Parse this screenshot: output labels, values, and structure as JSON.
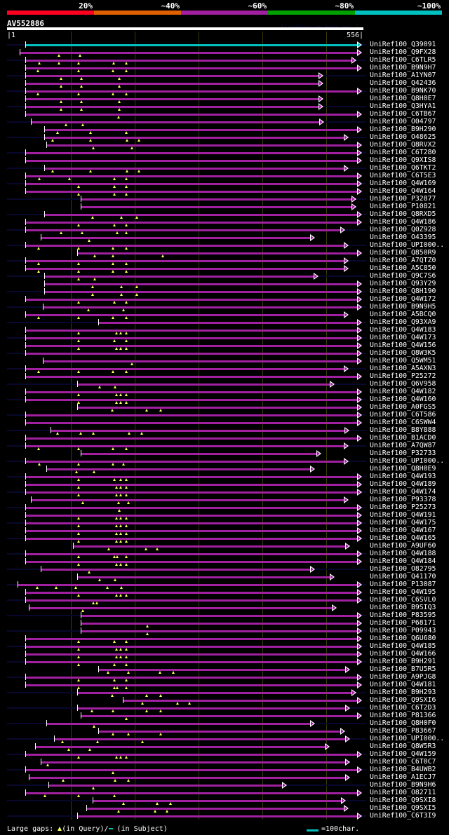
{
  "legend": {
    "labels": [
      "20%",
      "~40%",
      "~60%",
      "~80%",
      "~100%"
    ],
    "colors": [
      "#ff0020",
      "#e06000",
      "#a020a0",
      "#00a000",
      "#00c0c0"
    ]
  },
  "header": {
    "query_id": "AV552886",
    "version": "AlignView.pm Beta rel.7",
    "ruler_start": "|1",
    "ruler_end": "556|",
    "query_length": 556
  },
  "footer": {
    "gaps_label": "Large gaps:",
    "in_query": "(in Query)/",
    "in_subject": " (in Subject)",
    "scale_label": "=100char."
  },
  "colors": {
    "hit": "#a020a0",
    "query": "#00c0c0",
    "gap_marker": "#ffff60"
  },
  "rows": [
    {
      "label": "UniRef100_Q39091",
      "start": 14,
      "end": 556,
      "gaps": [],
      "color": "#00c0c0"
    },
    {
      "label": "UniRef100_Q9FX28",
      "start": 4,
      "end": 556,
      "gaps": [
        69,
        103
      ]
    },
    {
      "label": "UniRef100_C6TLR5",
      "start": 14,
      "end": 547,
      "gaps": [
        37,
        69,
        101,
        158,
        178
      ]
    },
    {
      "label": "UniRef100_B9N9H7",
      "start": 14,
      "end": 556,
      "gaps": [
        34,
        101,
        157,
        178
      ]
    },
    {
      "label": "UniRef100_A1YN07",
      "start": 14,
      "end": 493,
      "gaps": [
        72,
        105,
        167
      ]
    },
    {
      "label": "UniRef100_Q42436",
      "start": 14,
      "end": 493,
      "gaps": [
        72,
        105,
        167
      ]
    },
    {
      "label": "UniRef100_B9NK70",
      "start": 14,
      "end": 556,
      "gaps": [
        34,
        101,
        157,
        178
      ]
    },
    {
      "label": "UniRef100_Q8H0E7",
      "start": 14,
      "end": 493,
      "gaps": [
        72,
        105,
        167
      ]
    },
    {
      "label": "UniRef100_Q3HYA1",
      "start": 14,
      "end": 493,
      "gaps": [
        72,
        105,
        167
      ]
    },
    {
      "label": "UniRef100_C6TB67",
      "start": 14,
      "end": 556,
      "gaps": [
        166
      ]
    },
    {
      "label": "UniRef100_O04797",
      "start": 23,
      "end": 494,
      "gaps": [
        80,
        107
      ]
    },
    {
      "label": "UniRef100_B9H290",
      "start": 44,
      "end": 556,
      "gaps": [
        66,
        120,
        178
      ]
    },
    {
      "label": "UniRef100_O48625",
      "start": 44,
      "end": 534,
      "gaps": [
        58,
        120,
        179,
        199
      ]
    },
    {
      "label": "UniRef100_Q8RVX2",
      "start": 48,
      "end": 556,
      "gaps": [
        125,
        187
      ]
    },
    {
      "label": "UniRef100_C6T280",
      "start": 14,
      "end": 556,
      "gaps": []
    },
    {
      "label": "UniRef100_Q9XIS8",
      "start": 14,
      "end": 556,
      "gaps": []
    },
    {
      "label": "UniRef100_Q6TKT2",
      "start": 44,
      "end": 534,
      "gaps": [
        58,
        120,
        179,
        199
      ]
    },
    {
      "label": "UniRef100_C6T5E3",
      "start": 14,
      "end": 556,
      "gaps": [
        37,
        86,
        159,
        178
      ]
    },
    {
      "label": "UniRef100_Q4W169",
      "start": 14,
      "end": 556,
      "gaps": [
        101,
        159,
        178
      ]
    },
    {
      "label": "UniRef100_Q4W164",
      "start": 14,
      "end": 556,
      "gaps": [
        101,
        159,
        178
      ]
    },
    {
      "label": "UniRef100_P32877",
      "start": 104,
      "end": 547,
      "gaps": []
    },
    {
      "label": "UniRef100_P10821",
      "start": 104,
      "end": 547,
      "gaps": []
    },
    {
      "label": "UniRef100_Q8RXD5",
      "start": 44,
      "end": 556,
      "gaps": [
        124,
        170,
        196
      ]
    },
    {
      "label": "UniRef100_Q4W186",
      "start": 14,
      "end": 556,
      "gaps": [
        101,
        159,
        178
      ]
    },
    {
      "label": "UniRef100_Q0Z928",
      "start": 14,
      "end": 529,
      "gaps": [
        72,
        106,
        164,
        178
      ]
    },
    {
      "label": "UniRef100_O43395",
      "start": 39,
      "end": 479,
      "gaps": [
        118
      ]
    },
    {
      "label": "UniRef100_UPI000..",
      "start": 14,
      "end": 534,
      "gaps": [
        35,
        101,
        157,
        178
      ]
    },
    {
      "label": "UniRef100_Q850R9",
      "start": 98,
      "end": 556,
      "gaps": [
        127,
        157,
        238
      ]
    },
    {
      "label": "UniRef100_A7QTZ0",
      "start": 14,
      "end": 534,
      "gaps": [
        35,
        101,
        157,
        178
      ]
    },
    {
      "label": "UniRef100_A5C850",
      "start": 14,
      "end": 534,
      "gaps": [
        35,
        101,
        157,
        178
      ]
    },
    {
      "label": "UniRef100_Q9C7S6",
      "start": 44,
      "end": 485,
      "gaps": [
        101,
        127
      ]
    },
    {
      "label": "UniRef100_Q93Y29",
      "start": 44,
      "end": 556,
      "gaps": [
        124,
        170,
        196
      ]
    },
    {
      "label": "UniRef100_Q8H190",
      "start": 44,
      "end": 556,
      "gaps": [
        124,
        170,
        196
      ]
    },
    {
      "label": "UniRef100_Q4W172",
      "start": 14,
      "end": 556,
      "gaps": [
        101,
        159,
        178
      ]
    },
    {
      "label": "UniRef100_B9N9H5",
      "start": 42,
      "end": 556,
      "gaps": [
        117,
        174
      ]
    },
    {
      "label": "UniRef100_A5BCQ0",
      "start": 14,
      "end": 534,
      "gaps": [
        35,
        101,
        157,
        178
      ]
    },
    {
      "label": "UniRef100_Q93XA9",
      "start": 133,
      "end": 556,
      "gaps": []
    },
    {
      "label": "UniRef100_Q4W183",
      "start": 14,
      "end": 556,
      "gaps": [
        101,
        162,
        169,
        178
      ]
    },
    {
      "label": "UniRef100_Q4W173",
      "start": 14,
      "end": 556,
      "gaps": [
        101,
        159,
        178
      ]
    },
    {
      "label": "UniRef100_Q4W156",
      "start": 14,
      "end": 556,
      "gaps": [
        101,
        162,
        169,
        178
      ]
    },
    {
      "label": "UniRef100_Q8W3K5",
      "start": 14,
      "end": 556,
      "gaps": []
    },
    {
      "label": "UniRef100_Q5WM51",
      "start": 42,
      "end": 556,
      "gaps": [
        187
      ]
    },
    {
      "label": "UniRef100_A5AXN3",
      "start": 14,
      "end": 534,
      "gaps": [
        35,
        101,
        157,
        178
      ]
    },
    {
      "label": "UniRef100_P25272",
      "start": 14,
      "end": 556,
      "gaps": []
    },
    {
      "label": "UniRef100_Q6V958",
      "start": 98,
      "end": 511,
      "gaps": [
        135,
        160
      ]
    },
    {
      "label": "UniRef100_Q4W182",
      "start": 14,
      "end": 556,
      "gaps": [
        101,
        162,
        169,
        178
      ]
    },
    {
      "label": "UniRef100_Q4W160",
      "start": 14,
      "end": 556,
      "gaps": [
        101,
        162,
        169,
        178
      ]
    },
    {
      "label": "UniRef100_A0FGS5",
      "start": 98,
      "end": 556,
      "gaps": [
        156,
        212,
        234
      ]
    },
    {
      "label": "UniRef100_C6T586",
      "start": 14,
      "end": 556,
      "gaps": []
    },
    {
      "label": "UniRef100_C6SWW4",
      "start": 14,
      "end": 556,
      "gaps": []
    },
    {
      "label": "UniRef100_B8Y888",
      "start": 55,
      "end": 535,
      "gaps": [
        66,
        104,
        125,
        183,
        203
      ]
    },
    {
      "label": "UniRef100_B1ACD0",
      "start": 14,
      "end": 556,
      "gaps": []
    },
    {
      "label": "UniRef100_A7QW87",
      "start": 14,
      "end": 534,
      "gaps": [
        35,
        101,
        157,
        178
      ]
    },
    {
      "label": "UniRef100_P32733",
      "start": 104,
      "end": 490,
      "gaps": []
    },
    {
      "label": "UniRef100_UPI000..",
      "start": 14,
      "end": 534,
      "gaps": [
        37,
        101,
        157,
        174
      ]
    },
    {
      "label": "UniRef100_Q8H0E9",
      "start": 48,
      "end": 479,
      "gaps": [
        97,
        126
      ]
    },
    {
      "label": "UniRef100_Q4W193",
      "start": 14,
      "end": 556,
      "gaps": [
        101,
        159,
        169,
        178
      ]
    },
    {
      "label": "UniRef100_Q4W189",
      "start": 14,
      "end": 556,
      "gaps": [
        101,
        162,
        169,
        178
      ]
    },
    {
      "label": "UniRef100_Q4W174",
      "start": 14,
      "end": 556,
      "gaps": [
        101,
        162,
        169,
        178
      ]
    },
    {
      "label": "UniRef100_P93378",
      "start": 23,
      "end": 534,
      "gaps": [
        107,
        166,
        182
      ]
    },
    {
      "label": "UniRef100_P25273",
      "start": 14,
      "end": 556,
      "gaps": [
        167
      ]
    },
    {
      "label": "UniRef100_Q4W191",
      "start": 14,
      "end": 556,
      "gaps": [
        101,
        162,
        169,
        178
      ]
    },
    {
      "label": "UniRef100_Q4W175",
      "start": 14,
      "end": 556,
      "gaps": [
        101,
        162,
        169,
        178
      ]
    },
    {
      "label": "UniRef100_Q4W167",
      "start": 14,
      "end": 556,
      "gaps": [
        101,
        162,
        169,
        178
      ]
    },
    {
      "label": "UniRef100_Q4W165",
      "start": 14,
      "end": 556,
      "gaps": [
        101,
        162,
        169,
        178
      ]
    },
    {
      "label": "UniRef100_A9UF60",
      "start": 91,
      "end": 537,
      "gaps": [
        150,
        210,
        229
      ]
    },
    {
      "label": "UniRef100_Q4W188",
      "start": 14,
      "end": 556,
      "gaps": [
        101,
        159,
        164,
        178
      ]
    },
    {
      "label": "UniRef100_Q4W184",
      "start": 14,
      "end": 556,
      "gaps": [
        101,
        162,
        169,
        178
      ]
    },
    {
      "label": "UniRef100_O82795",
      "start": 39,
      "end": 479,
      "gaps": [
        118
      ]
    },
    {
      "label": "UniRef100_Q41170",
      "start": 98,
      "end": 511,
      "gaps": [
        135,
        160
      ]
    },
    {
      "label": "UniRef100_P13087",
      "start": 1,
      "end": 556,
      "gaps": [
        33,
        64,
        96,
        148,
        170
      ]
    },
    {
      "label": "UniRef100_Q4W195",
      "start": 14,
      "end": 556,
      "gaps": [
        101,
        162,
        169,
        178
      ]
    },
    {
      "label": "UniRef100_C6SVL0",
      "start": 14,
      "end": 556,
      "gaps": [
        125,
        130
      ]
    },
    {
      "label": "UniRef100_B9SIQ3",
      "start": 19,
      "end": 515,
      "gaps": [
        107
      ]
    },
    {
      "label": "UniRef100_P83595",
      "start": 104,
      "end": 556,
      "gaps": []
    },
    {
      "label": "UniRef100_P68171",
      "start": 104,
      "end": 556,
      "gaps": [
        213
      ]
    },
    {
      "label": "UniRef100_P09943",
      "start": 104,
      "end": 556,
      "gaps": [
        213
      ]
    },
    {
      "label": "UniRef100_Q6U680",
      "start": 14,
      "end": 556,
      "gaps": [
        101,
        159,
        178
      ]
    },
    {
      "label": "UniRef100_Q4W185",
      "start": 14,
      "end": 556,
      "gaps": [
        101,
        162,
        169,
        178
      ]
    },
    {
      "label": "UniRef100_Q4W166",
      "start": 14,
      "end": 556,
      "gaps": [
        101,
        162,
        169,
        178
      ]
    },
    {
      "label": "UniRef100_B9H291",
      "start": 14,
      "end": 556,
      "gaps": [
        101,
        159,
        178
      ]
    },
    {
      "label": "UniRef100_B7U5R5",
      "start": 133,
      "end": 537,
      "gaps": [
        149,
        182,
        233,
        255
      ]
    },
    {
      "label": "UniRef100_A9PJG8",
      "start": 14,
      "end": 556,
      "gaps": [
        101,
        159,
        178
      ]
    },
    {
      "label": "UniRef100_Q4W181",
      "start": 14,
      "end": 556,
      "gaps": [
        101,
        159,
        164,
        178
      ]
    },
    {
      "label": "UniRef100_B9H293",
      "start": 98,
      "end": 547,
      "gaps": [
        156,
        212,
        235
      ]
    },
    {
      "label": "UniRef100_Q9SXI6",
      "start": 173,
      "end": 556,
      "gaps": [
        205,
        262,
        281
      ]
    },
    {
      "label": "UniRef100_C6T2D3",
      "start": 98,
      "end": 537,
      "gaps": [
        122,
        157,
        212,
        235
      ]
    },
    {
      "label": "UniRef100_P81366",
      "start": 104,
      "end": 556,
      "gaps": [
        178
      ]
    },
    {
      "label": "UniRef100_Q8H0F0",
      "start": 48,
      "end": 479,
      "gaps": [
        126
      ]
    },
    {
      "label": "UniRef100_P83667",
      "start": 133,
      "end": 529,
      "gaps": [
        157,
        182,
        235
      ]
    },
    {
      "label": "UniRef100_UPI000..",
      "start": 60,
      "end": 537,
      "gaps": [
        74,
        132,
        205
      ]
    },
    {
      "label": "UniRef100_Q8W5R3",
      "start": 30,
      "end": 503,
      "gaps": [
        85,
        119
      ]
    },
    {
      "label": "UniRef100_Q4W159",
      "start": 14,
      "end": 556,
      "gaps": [
        101,
        162,
        169,
        178
      ]
    },
    {
      "label": "UniRef100_C6T0C7",
      "start": 39,
      "end": 537,
      "gaps": [
        50
      ]
    },
    {
      "label": "UniRef100_B4UWB2",
      "start": 14,
      "end": 556,
      "gaps": [
        157
      ]
    },
    {
      "label": "UniRef100_A1ECJ7",
      "start": 19,
      "end": 537,
      "gaps": [
        75,
        160,
        182
      ]
    },
    {
      "label": "UniRef100_B9N9H6",
      "start": 51,
      "end": 433,
      "gaps": [
        125
      ]
    },
    {
      "label": "UniRef100_O82711",
      "start": 14,
      "end": 556,
      "gaps": [
        46,
        101,
        159
      ]
    },
    {
      "label": "UniRef100_Q9SXI8",
      "start": 123,
      "end": 530,
      "gaps": [
        174,
        229,
        250
      ]
    },
    {
      "label": "UniRef100_Q9SXI5",
      "start": 113,
      "end": 534,
      "gaps": [
        166,
        225,
        245
      ]
    },
    {
      "label": "UniRef100_C6T3I9",
      "start": 98,
      "end": 556,
      "gaps": []
    }
  ]
}
